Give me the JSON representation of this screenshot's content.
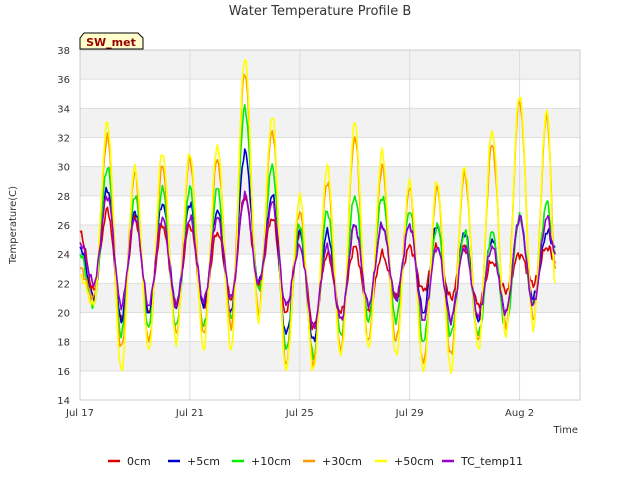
{
  "chart_data": {
    "type": "line",
    "title": "Water Temperature Profile B",
    "xlabel": "Time",
    "ylabel": "Temperature(C)",
    "site_tag": "SW_met",
    "x_unit": "day offset from Jul 17",
    "xlim": [
      0,
      18.2
    ],
    "ylim": [
      14,
      38
    ],
    "yticks": [
      14,
      16,
      18,
      20,
      22,
      24,
      26,
      28,
      30,
      32,
      34,
      36,
      38
    ],
    "xticks": [
      {
        "value": 0,
        "label": "Jul 17"
      },
      {
        "value": 4,
        "label": "Jul 21"
      },
      {
        "value": 8,
        "label": "Jul 25"
      },
      {
        "value": 12,
        "label": "Jul 29"
      },
      {
        "value": 16,
        "label": "Aug 2"
      }
    ],
    "grid": true,
    "legend_position": "bottom",
    "x": [
      0.0,
      0.5,
      1.0,
      1.5,
      2.0,
      2.5,
      3.0,
      3.5,
      4.0,
      4.5,
      5.0,
      5.5,
      6.0,
      6.5,
      7.0,
      7.5,
      8.0,
      8.5,
      9.0,
      9.5,
      10.0,
      10.5,
      11.0,
      11.5,
      12.0,
      12.5,
      13.0,
      13.5,
      14.0,
      14.5,
      15.0,
      15.5,
      16.0,
      16.5,
      17.0,
      17.3
    ],
    "series": [
      {
        "name": "0cm",
        "color": "#dd0000",
        "values": [
          25.5,
          21.5,
          27.0,
          19.5,
          26.5,
          20.0,
          26.0,
          20.5,
          26.0,
          20.5,
          25.5,
          21.0,
          28.0,
          22.0,
          26.5,
          20.0,
          25.5,
          19.0,
          24.0,
          20.0,
          24.5,
          20.0,
          24.0,
          21.0,
          24.5,
          21.5,
          24.5,
          21.0,
          24.5,
          20.5,
          23.5,
          21.5,
          24.0,
          22.0,
          24.5,
          23.5
        ]
      },
      {
        "name": "+5cm",
        "color": "#0000cc",
        "values": [
          24.5,
          21.0,
          28.5,
          19.5,
          27.0,
          20.0,
          27.5,
          20.5,
          27.5,
          20.5,
          27.0,
          20.0,
          31.0,
          22.0,
          28.0,
          18.5,
          25.5,
          18.0,
          25.5,
          19.5,
          26.0,
          20.5,
          26.0,
          21.0,
          26.0,
          20.0,
          26.0,
          19.5,
          25.5,
          19.5,
          25.0,
          20.0,
          26.5,
          21.0,
          25.5,
          24.5
        ]
      },
      {
        "name": "+10cm",
        "color": "#00ee00",
        "values": [
          24.0,
          20.5,
          30.0,
          18.5,
          28.0,
          19.0,
          28.5,
          19.0,
          28.5,
          19.0,
          28.5,
          19.5,
          34.0,
          21.5,
          30.0,
          17.5,
          26.0,
          17.0,
          27.0,
          18.5,
          28.0,
          19.5,
          28.0,
          19.5,
          27.0,
          18.0,
          26.0,
          18.5,
          25.5,
          18.5,
          25.5,
          19.0,
          26.5,
          20.5,
          27.5,
          24.0
        ]
      },
      {
        "name": "+30cm",
        "color": "#ff9900",
        "values": [
          23.0,
          21.0,
          32.0,
          17.5,
          29.5,
          18.0,
          30.0,
          18.5,
          30.5,
          18.5,
          30.5,
          19.0,
          36.5,
          20.0,
          32.5,
          16.5,
          27.0,
          16.5,
          29.0,
          17.5,
          32.0,
          18.0,
          30.0,
          18.0,
          28.5,
          16.5,
          28.5,
          17.0,
          29.5,
          18.0,
          31.5,
          19.0,
          34.5,
          19.5,
          33.5,
          23.0
        ]
      },
      {
        "name": "+50cm",
        "color": "#ffff00",
        "values": [
          22.5,
          20.5,
          33.0,
          16.0,
          30.0,
          17.5,
          31.0,
          18.0,
          31.0,
          17.5,
          31.5,
          17.5,
          37.5,
          19.5,
          33.5,
          16.0,
          28.0,
          16.0,
          30.0,
          17.0,
          33.0,
          17.5,
          31.0,
          17.0,
          29.0,
          16.0,
          29.0,
          16.0,
          30.0,
          17.5,
          32.5,
          18.5,
          35.0,
          19.0,
          34.0,
          22.0
        ]
      },
      {
        "name": "TC_temp11",
        "color": "#9900cc",
        "values": [
          24.8,
          22.0,
          28.0,
          20.5,
          26.5,
          20.5,
          26.5,
          20.5,
          26.5,
          20.8,
          26.5,
          21.0,
          28.0,
          22.0,
          27.5,
          20.5,
          24.5,
          19.0,
          24.5,
          19.5,
          26.0,
          20.5,
          26.0,
          21.0,
          26.0,
          19.5,
          24.5,
          19.5,
          24.5,
          19.8,
          24.5,
          20.0,
          26.5,
          20.5,
          26.5,
          24.0
        ]
      }
    ]
  }
}
